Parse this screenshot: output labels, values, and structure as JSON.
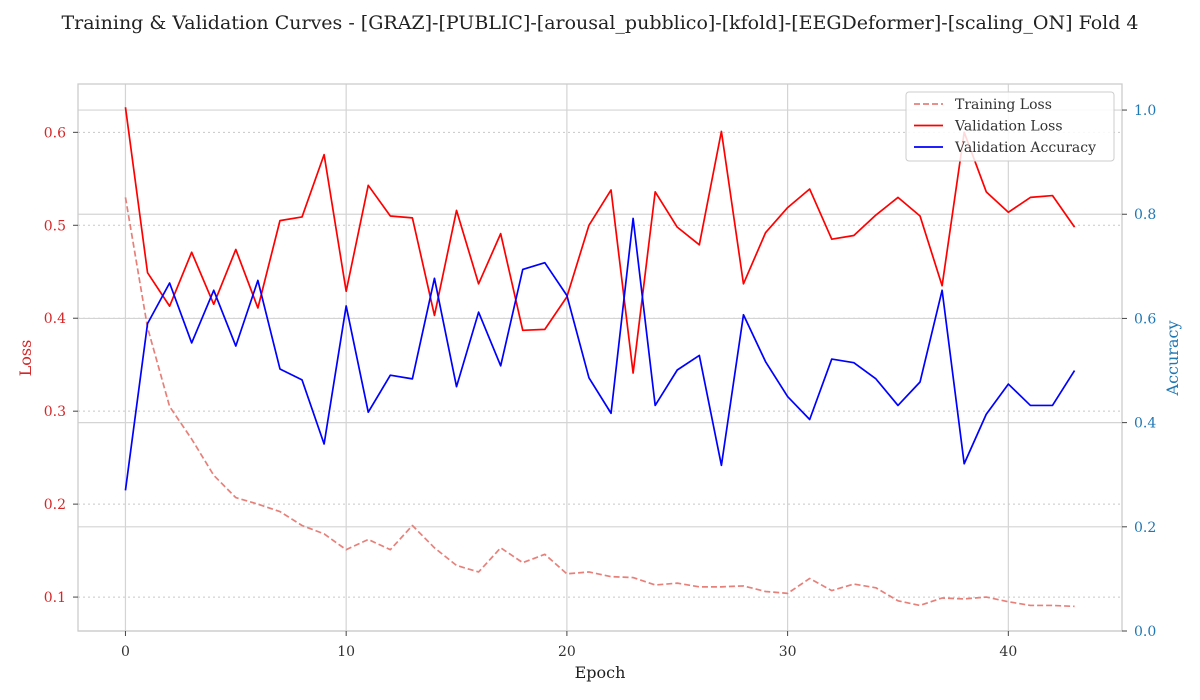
{
  "chart_data": {
    "type": "line",
    "title": "Training & Validation Curves - [GRAZ]-[PUBLIC]-[arousal_pubblico]-[kfold]-[EEGDeformer]-[scaling_ON] Fold 4",
    "xlabel": "Epoch",
    "ylabel_left": "Loss",
    "ylabel_right": "Accuracy",
    "xlim": [
      -2.15,
      45.15
    ],
    "ylim_left": [
      0.0635,
      0.652
    ],
    "ylim_right": [
      0.0,
      1.05
    ],
    "x_ticks": [
      0,
      10,
      20,
      30,
      40
    ],
    "y_ticks_left": [
      0.1,
      0.2,
      0.3,
      0.4,
      0.5,
      0.6
    ],
    "y_ticks_right": [
      0.0,
      0.2,
      0.4,
      0.6,
      0.8,
      1.0
    ],
    "grid": true,
    "legend_position": "top-right",
    "colors": {
      "loss_axis": "#d62728",
      "accuracy_axis": "#1f77b4"
    },
    "series": [
      {
        "name": "Training Loss",
        "axis": "left",
        "color": "#e8807a",
        "dash": "dashed",
        "x": [
          0,
          1,
          2,
          3,
          4,
          5,
          6,
          7,
          8,
          9,
          10,
          11,
          12,
          13,
          14,
          15,
          16,
          17,
          18,
          19,
          20,
          21,
          22,
          23,
          24,
          25,
          26,
          27,
          28,
          29,
          30,
          31,
          32,
          33,
          34,
          35,
          36,
          37,
          38,
          39,
          40,
          41,
          42,
          43
        ],
        "values": [
          0.53,
          0.39,
          0.305,
          0.27,
          0.231,
          0.207,
          0.2,
          0.192,
          0.177,
          0.168,
          0.151,
          0.162,
          0.151,
          0.177,
          0.153,
          0.134,
          0.127,
          0.153,
          0.137,
          0.146,
          0.125,
          0.127,
          0.122,
          0.121,
          0.113,
          0.115,
          0.111,
          0.111,
          0.112,
          0.106,
          0.104,
          0.12,
          0.107,
          0.114,
          0.11,
          0.096,
          0.091,
          0.099,
          0.098,
          0.1,
          0.095,
          0.091,
          0.091,
          0.09
        ]
      },
      {
        "name": "Validation Loss",
        "axis": "left",
        "color": "#ff0000",
        "dash": "solid",
        "x": [
          0,
          1,
          2,
          3,
          4,
          5,
          6,
          7,
          8,
          9,
          10,
          11,
          12,
          13,
          14,
          15,
          16,
          17,
          18,
          19,
          20,
          21,
          22,
          23,
          24,
          25,
          26,
          27,
          28,
          29,
          30,
          31,
          32,
          33,
          34,
          35,
          36,
          37,
          38,
          39,
          40,
          41,
          42,
          43
        ],
        "values": [
          0.627,
          0.449,
          0.413,
          0.471,
          0.415,
          0.474,
          0.411,
          0.505,
          0.509,
          0.576,
          0.429,
          0.543,
          0.51,
          0.508,
          0.403,
          0.516,
          0.437,
          0.491,
          0.387,
          0.388,
          0.423,
          0.5,
          0.538,
          0.341,
          0.536,
          0.498,
          0.479,
          0.601,
          0.437,
          0.492,
          0.519,
          0.539,
          0.485,
          0.489,
          0.511,
          0.53,
          0.51,
          0.435,
          0.6,
          0.536,
          0.514,
          0.53,
          0.532,
          0.498
        ]
      },
      {
        "name": "Validation Accuracy",
        "axis": "right",
        "color": "#0000ff",
        "dash": "solid",
        "x": [
          0,
          1,
          2,
          3,
          4,
          5,
          6,
          7,
          8,
          9,
          10,
          11,
          12,
          13,
          14,
          15,
          16,
          17,
          18,
          19,
          20,
          21,
          22,
          23,
          24,
          25,
          26,
          27,
          28,
          29,
          30,
          31,
          32,
          33,
          34,
          35,
          36,
          37,
          38,
          39,
          40,
          41,
          42,
          43
        ],
        "values": [
          0.27,
          0.59,
          0.668,
          0.553,
          0.654,
          0.547,
          0.673,
          0.503,
          0.482,
          0.359,
          0.624,
          0.42,
          0.491,
          0.484,
          0.677,
          0.469,
          0.612,
          0.509,
          0.694,
          0.707,
          0.644,
          0.486,
          0.418,
          0.792,
          0.433,
          0.501,
          0.529,
          0.318,
          0.607,
          0.517,
          0.45,
          0.406,
          0.522,
          0.515,
          0.484,
          0.433,
          0.478,
          0.654,
          0.321,
          0.416,
          0.474,
          0.433,
          0.433,
          0.5
        ]
      }
    ]
  }
}
